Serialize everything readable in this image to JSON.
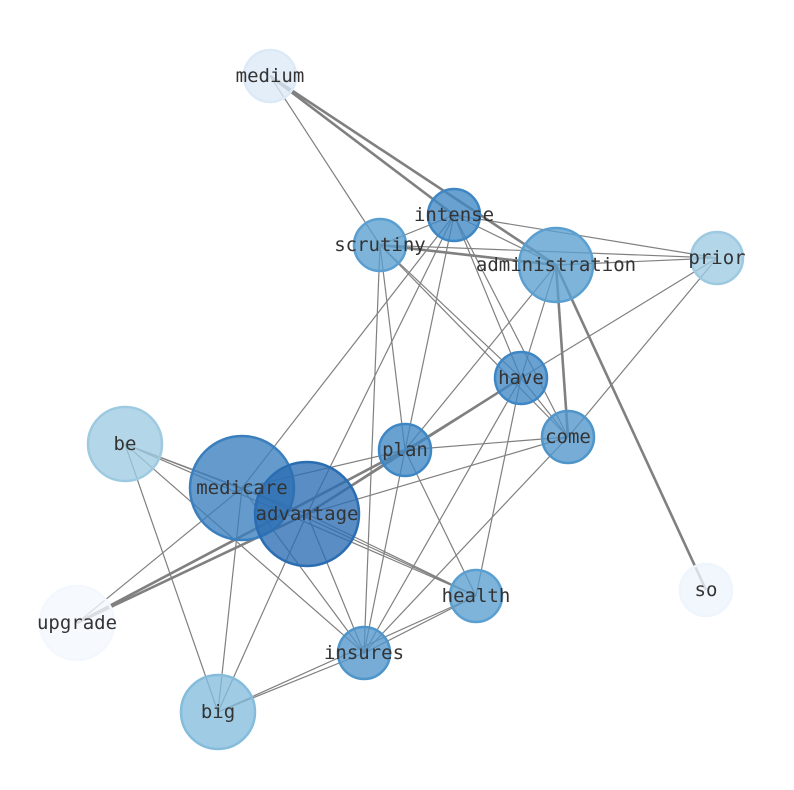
{
  "graph": {
    "nodes": [
      {
        "id": "medium",
        "label": "medium",
        "color": "#dce9f6"
      },
      {
        "id": "intense",
        "label": "intense",
        "color": "#3f87c4"
      },
      {
        "id": "scrutiny",
        "label": "scrutiny",
        "color": "#5a9fd0"
      },
      {
        "id": "administration",
        "label": "administration",
        "color": "#5a9fd0"
      },
      {
        "id": "prior",
        "label": "prior",
        "color": "#9ecae1"
      },
      {
        "id": "have",
        "label": "have",
        "color": "#3f87c4"
      },
      {
        "id": "come",
        "label": "come",
        "color": "#4f95ca"
      },
      {
        "id": "be",
        "label": "be",
        "color": "#9ecae1"
      },
      {
        "id": "plan",
        "label": "plan",
        "color": "#3f87c4"
      },
      {
        "id": "medicare",
        "label": "medicare",
        "color": "#3a7fbe"
      },
      {
        "id": "advantage",
        "label": "advantage",
        "color": "#2a6db2"
      },
      {
        "id": "health",
        "label": "health",
        "color": "#5a9fd0"
      },
      {
        "id": "so",
        "label": "so",
        "color": "#eef5fc"
      },
      {
        "id": "upgrade",
        "label": "upgrade",
        "color": "#f3f8fe"
      },
      {
        "id": "insures",
        "label": "insures",
        "color": "#4f95ca"
      },
      {
        "id": "big",
        "label": "big",
        "color": "#85bcdc"
      }
    ],
    "edges": [
      [
        "medium",
        "intense",
        2
      ],
      [
        "medium",
        "administration",
        2
      ],
      [
        "medium",
        "scrutiny",
        1
      ],
      [
        "intense",
        "scrutiny",
        1
      ],
      [
        "intense",
        "administration",
        1
      ],
      [
        "intense",
        "prior",
        1
      ],
      [
        "intense",
        "have",
        1
      ],
      [
        "intense",
        "come",
        1
      ],
      [
        "intense",
        "plan",
        1
      ],
      [
        "intense",
        "medicare",
        1
      ],
      [
        "intense",
        "advantage",
        1
      ],
      [
        "scrutiny",
        "administration",
        2
      ],
      [
        "scrutiny",
        "prior",
        1
      ],
      [
        "scrutiny",
        "have",
        1
      ],
      [
        "scrutiny",
        "come",
        1
      ],
      [
        "scrutiny",
        "plan",
        1
      ],
      [
        "scrutiny",
        "insures",
        1
      ],
      [
        "administration",
        "prior",
        1
      ],
      [
        "administration",
        "have",
        1
      ],
      [
        "administration",
        "come",
        2
      ],
      [
        "administration",
        "so",
        2
      ],
      [
        "administration",
        "plan",
        1
      ],
      [
        "prior",
        "have",
        1
      ],
      [
        "prior",
        "come",
        1
      ],
      [
        "have",
        "plan",
        1
      ],
      [
        "have",
        "advantage",
        2
      ],
      [
        "have",
        "come",
        1
      ],
      [
        "have",
        "health",
        1
      ],
      [
        "have",
        "insures",
        1
      ],
      [
        "come",
        "plan",
        1
      ],
      [
        "come",
        "advantage",
        1
      ],
      [
        "come",
        "insures",
        1
      ],
      [
        "plan",
        "medicare",
        1
      ],
      [
        "plan",
        "advantage",
        1
      ],
      [
        "plan",
        "health",
        1
      ],
      [
        "plan",
        "insures",
        1
      ],
      [
        "plan",
        "upgrade",
        2
      ],
      [
        "be",
        "medicare",
        1
      ],
      [
        "be",
        "advantage",
        1
      ],
      [
        "be",
        "health",
        1
      ],
      [
        "be",
        "big",
        1
      ],
      [
        "be",
        "insures",
        1
      ],
      [
        "medicare",
        "advantage",
        1
      ],
      [
        "medicare",
        "health",
        1
      ],
      [
        "medicare",
        "insures",
        1
      ],
      [
        "medicare",
        "big",
        1
      ],
      [
        "medicare",
        "upgrade",
        1
      ],
      [
        "advantage",
        "health",
        1
      ],
      [
        "advantage",
        "insures",
        1
      ],
      [
        "advantage",
        "big",
        1
      ],
      [
        "advantage",
        "upgrade",
        2
      ],
      [
        "health",
        "insures",
        1
      ],
      [
        "health",
        "big",
        1
      ],
      [
        "insures",
        "big",
        1
      ]
    ]
  }
}
